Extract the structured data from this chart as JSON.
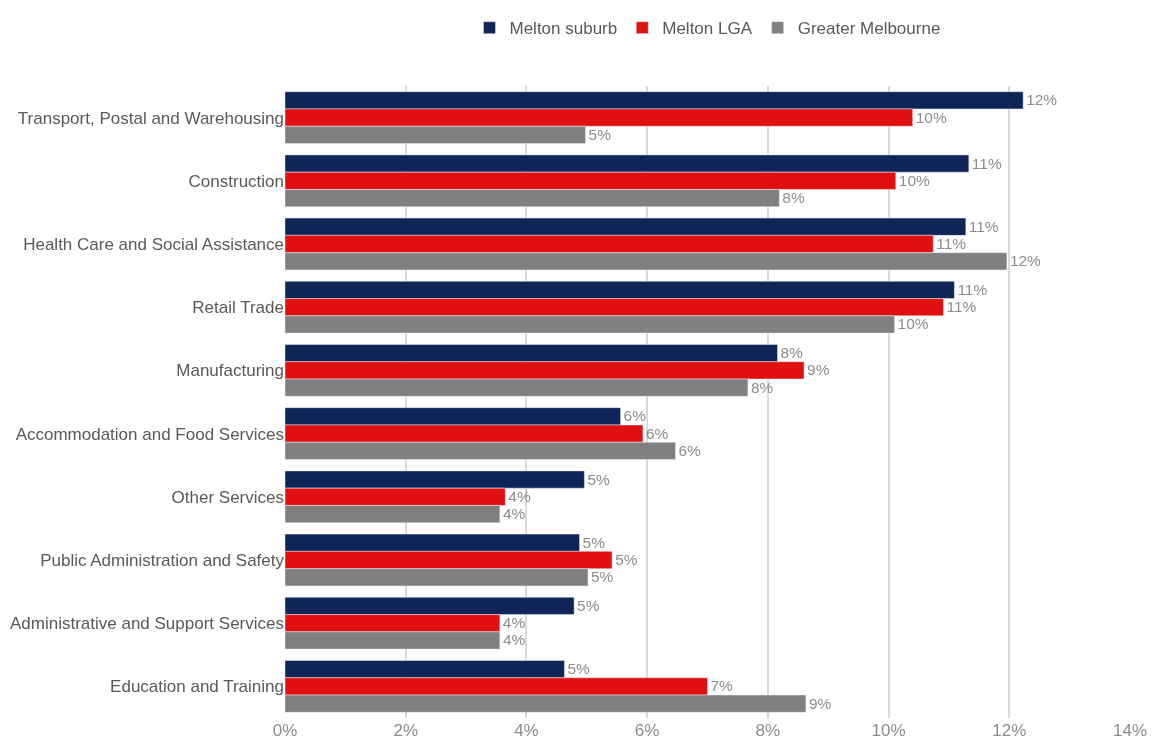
{
  "chart_data": {
    "type": "bar",
    "orientation": "horizontal",
    "categories": [
      "Transport, Postal and Warehousing",
      "Construction",
      "Health Care and Social Assistance",
      "Retail Trade",
      "Manufacturing",
      "Accommodation and Food Services",
      "Other Services",
      "Public Administration and Safety",
      "Administrative and Support Services",
      "Education and Training"
    ],
    "series": [
      {
        "name": "Melton suburb",
        "color": "#0f2557",
        "values": [
          12.23,
          11.33,
          11.28,
          11.09,
          8.16,
          5.56,
          4.96,
          4.88,
          4.79,
          4.63
        ],
        "value_labels": [
          "12%",
          "11%",
          "11%",
          "11%",
          "8%",
          "6%",
          "5%",
          "5%",
          "5%",
          "5%"
        ]
      },
      {
        "name": "Melton LGA",
        "color": "#e01010",
        "values": [
          10.4,
          10.12,
          10.74,
          10.91,
          8.6,
          5.93,
          3.65,
          5.42,
          3.56,
          7.0
        ],
        "value_labels": [
          "10%",
          "10%",
          "11%",
          "11%",
          "9%",
          "6%",
          "4%",
          "5%",
          "4%",
          "7%"
        ]
      },
      {
        "name": "Greater Melbourne",
        "color": "#808080",
        "values": [
          4.98,
          8.19,
          11.96,
          10.1,
          7.67,
          6.47,
          3.56,
          5.02,
          3.56,
          8.63
        ],
        "value_labels": [
          "5%",
          "8%",
          "12%",
          "10%",
          "8%",
          "6%",
          "4%",
          "5%",
          "4%",
          "9%"
        ]
      }
    ],
    "xlim": [
      0,
      14
    ],
    "xticks": [
      {
        "value": 0,
        "label": "0%"
      },
      {
        "value": 2,
        "label": "2%"
      },
      {
        "value": 4,
        "label": "4%"
      },
      {
        "value": 6,
        "label": "6%"
      },
      {
        "value": 8,
        "label": "8%"
      },
      {
        "value": 10,
        "label": "10%"
      },
      {
        "value": 12,
        "label": "12%"
      },
      {
        "value": 14,
        "label": "14%"
      }
    ],
    "grid": "x",
    "legend": "top"
  }
}
